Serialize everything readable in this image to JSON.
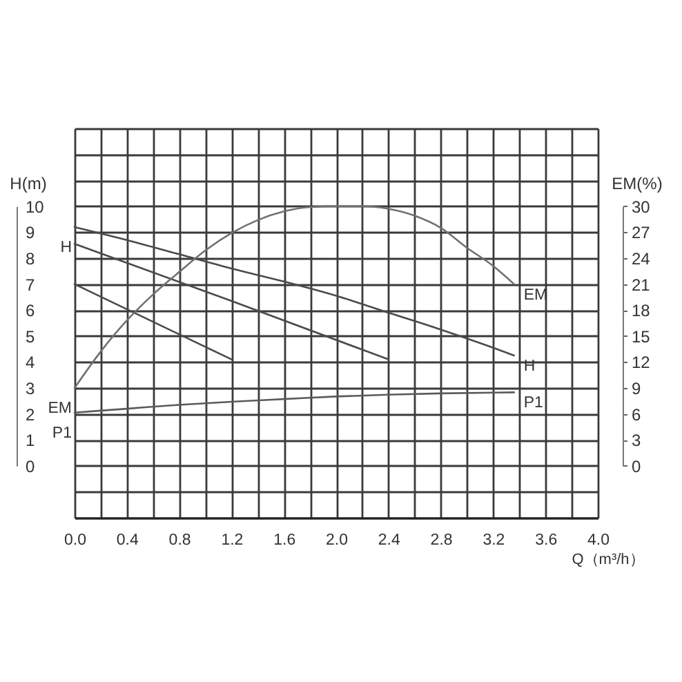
{
  "chart_data": {
    "type": "line",
    "xlabel": "Q（m³/h）",
    "ylabel": "H(m)",
    "y2label": "EM(%)",
    "xlim": [
      0,
      4.0
    ],
    "xticks": [
      {
        "value": 0,
        "label": "0.0"
      },
      {
        "value": 0.2,
        "label": null
      },
      0.4,
      {
        "value": 0.6,
        "label": null
      },
      0.8,
      {
        "value": 1.0,
        "label": null
      },
      1.2,
      {
        "value": 1.4,
        "label": null
      },
      1.6,
      {
        "value": 1.8,
        "label": null
      },
      {
        "value": 2.0,
        "label": "2.0"
      },
      {
        "value": 2.2,
        "label": null
      },
      2.4,
      {
        "value": 2.6,
        "label": null
      },
      2.8,
      {
        "value": 3.0,
        "label": null
      },
      3.2,
      {
        "value": 3.4,
        "label": null
      },
      3.6,
      {
        "value": 3.8,
        "label": null
      },
      {
        "value": 4.0,
        "label": "4.0"
      }
    ],
    "ylim": [
      -2,
      13
    ],
    "yticks": [
      {
        "value": -2,
        "label": null
      },
      {
        "value": -1,
        "label": null
      },
      0,
      1,
      2,
      3,
      4,
      5,
      6,
      7,
      8,
      9,
      10,
      {
        "value": 11,
        "label": null
      },
      {
        "value": 12,
        "label": null
      },
      {
        "value": 13,
        "label": null
      }
    ],
    "y2lim": [
      -6,
      39
    ],
    "y2ticks": [
      0,
      3,
      6,
      9,
      12,
      15,
      18,
      21,
      24,
      27,
      30
    ],
    "grid": true,
    "legend": false,
    "series": [
      {
        "name": "H",
        "color": "#4a4a4a",
        "x": [
          0,
          0.4,
          0.8,
          1.2,
          1.6,
          2.0,
          2.4,
          2.8,
          3.2,
          3.36
        ],
        "values": [
          9.2,
          8.7,
          8.15,
          7.6,
          7.1,
          6.55,
          5.9,
          5.25,
          4.55,
          4.25
        ]
      },
      {
        "color": "#4a4a4a",
        "x": [
          0,
          1.2,
          2.4
        ],
        "values": [
          8.55,
          6.35,
          4.1
        ]
      },
      {
        "color": "#4a4a4a",
        "x": [
          0,
          1.2
        ],
        "values": [
          7.0,
          4.1
        ]
      },
      {
        "name": "EM",
        "axis": "y2",
        "color": "#707070",
        "x": [
          0,
          0.2,
          0.4,
          0.6,
          0.8,
          1.0,
          1.2,
          1.4,
          1.6,
          1.8,
          2.0,
          2.2,
          2.4,
          2.6,
          2.8,
          3.0,
          3.2,
          3.36
        ],
        "values": [
          9,
          13.2,
          16.8,
          19.8,
          22.4,
          24.9,
          26.9,
          28.4,
          29.4,
          29.9,
          30,
          30,
          29.7,
          28.9,
          27.5,
          25.2,
          23.1,
          21
        ]
      },
      {
        "name": "P1",
        "color": "#5a5a5a",
        "x": [
          0,
          0.4,
          0.8,
          1.2,
          1.6,
          2.0,
          2.4,
          2.8,
          3.36
        ],
        "values": [
          2.05,
          2.2,
          2.35,
          2.47,
          2.57,
          2.67,
          2.74,
          2.79,
          2.83
        ]
      }
    ]
  }
}
